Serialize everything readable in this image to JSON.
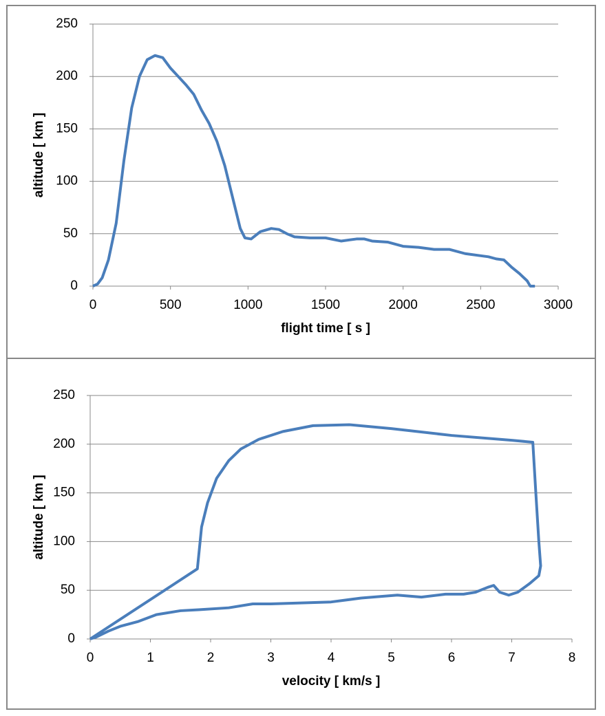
{
  "chart_data": [
    {
      "type": "line",
      "xlabel": "flight time [ s ]",
      "ylabel": "altitude [ km ]",
      "xlim": [
        0,
        3000
      ],
      "xticks": [
        0,
        500,
        1000,
        1500,
        2000,
        2500,
        3000
      ],
      "ylim": [
        0,
        250
      ],
      "yticks": [
        0,
        50,
        100,
        150,
        200,
        250
      ],
      "grid": true,
      "series": [
        {
          "color": "#4a7ebb",
          "x": [
            0,
            30,
            60,
            100,
            150,
            200,
            250,
            300,
            350,
            400,
            450,
            500,
            550,
            600,
            650,
            700,
            750,
            800,
            850,
            900,
            950,
            980,
            1020,
            1080,
            1150,
            1200,
            1250,
            1300,
            1400,
            1500,
            1600,
            1700,
            1750,
            1800,
            1900,
            2000,
            2100,
            2200,
            2300,
            2400,
            2500,
            2550,
            2600,
            2650,
            2700,
            2750,
            2800,
            2820,
            2850
          ],
          "values": [
            0,
            2,
            8,
            25,
            60,
            120,
            170,
            200,
            216,
            220,
            218,
            208,
            200,
            192,
            183,
            168,
            155,
            138,
            115,
            85,
            55,
            46,
            45,
            52,
            55,
            54,
            50,
            47,
            46,
            46,
            43,
            45,
            45,
            43,
            42,
            38,
            37,
            35,
            35,
            31,
            29,
            28,
            26,
            25,
            18,
            12,
            5,
            0,
            0
          ]
        }
      ]
    },
    {
      "type": "line",
      "xlabel": "velocity [ km/s ]",
      "ylabel": "altitude [ km ]",
      "xlim": [
        0,
        8
      ],
      "xticks": [
        0,
        1,
        2,
        3,
        4,
        5,
        6,
        7,
        8
      ],
      "ylim": [
        0,
        250
      ],
      "yticks": [
        0,
        50,
        100,
        150,
        200,
        250
      ],
      "grid": true,
      "series": [
        {
          "color": "#4a7ebb",
          "x": [
            0,
            1.78,
            1.85,
            1.95,
            2.1,
            2.3,
            2.5,
            2.8,
            3.2,
            3.7,
            4.3,
            5,
            6,
            7,
            7.35,
            7.4,
            7.45,
            7.48,
            7.45,
            7.3,
            7.1,
            6.95,
            6.8,
            6.7,
            6.6,
            6.4,
            6.2,
            5.9,
            5.5,
            5.1,
            4.5,
            4.0,
            3.5,
            3.0,
            2.7,
            2.3,
            1.8,
            1.5,
            1.1,
            0.8,
            0.5,
            0.3,
            0.1,
            0
          ],
          "values": [
            0,
            72,
            115,
            140,
            165,
            183,
            195,
            205,
            213,
            219,
            220,
            216,
            209,
            204,
            202,
            150,
            100,
            75,
            65,
            57,
            48,
            45,
            48,
            55,
            53,
            48,
            46,
            46,
            43,
            45,
            42,
            38,
            37,
            36,
            36,
            32,
            30,
            29,
            25,
            18,
            13,
            8,
            2,
            0
          ]
        }
      ]
    }
  ]
}
